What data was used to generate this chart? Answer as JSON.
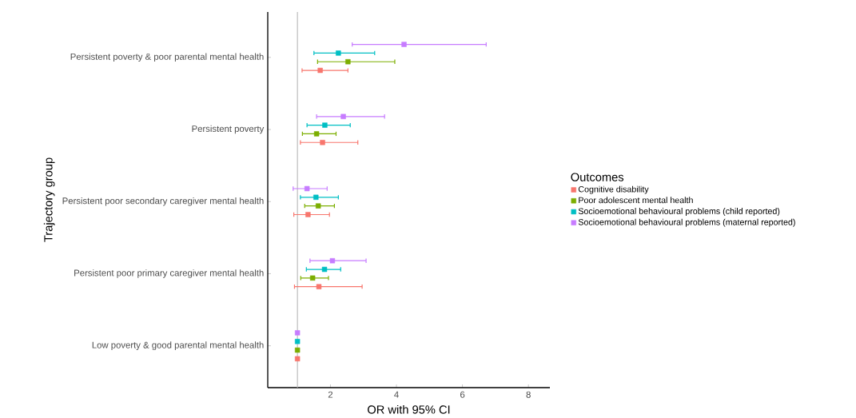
{
  "chart_data": {
    "type": "scatter",
    "orientation": "horizontal",
    "xlabel": "OR with 95% CI",
    "ylabel": "Trajectory group",
    "legend_title": "Outcomes",
    "legend": "right",
    "marker": "square",
    "grid": false,
    "categories": [
      "Persistent poverty & poor parental mental health",
      "Persistent poverty",
      "Persistent poor secondary caregiver mental health",
      "Persistent poor primary caregiver mental health",
      "Low poverty & good parental mental health"
    ],
    "xlim": [
      0.1,
      8.65
    ],
    "xticks": [
      2,
      4,
      6,
      8
    ],
    "ref_lines": [
      {
        "axis": "x",
        "value": 1,
        "color": "#bebebe"
      }
    ],
    "series": [
      {
        "name": "Cognitive disability",
        "color": "#f8766d",
        "values": [
          1.69,
          1.76,
          1.32,
          1.65,
          1
        ],
        "errors": [
          [
            1.14,
            2.53
          ],
          [
            1.09,
            2.83
          ],
          [
            0.89,
            1.97
          ],
          [
            0.91,
            2.96
          ],
          null
        ]
      },
      {
        "name": "Poor adolescent mental health",
        "color": "#7cae00",
        "values": [
          2.53,
          1.58,
          1.63,
          1.46,
          1
        ],
        "errors": [
          [
            1.61,
            3.95
          ],
          [
            1.15,
            2.17
          ],
          [
            1.22,
            2.12
          ],
          [
            1.1,
            1.94
          ],
          null
        ]
      },
      {
        "name": "Socioemotional behavioural problems (child reported)",
        "color": "#00bfc4",
        "values": [
          2.24,
          1.83,
          1.56,
          1.82,
          1
        ],
        "errors": [
          [
            1.5,
            3.34
          ],
          [
            1.29,
            2.6
          ],
          [
            1.09,
            2.24
          ],
          [
            1.27,
            2.31
          ],
          null
        ]
      },
      {
        "name": "Socioemotional behavioural problems (maternal reported)",
        "color": "#c77cff",
        "values": [
          4.23,
          2.39,
          1.29,
          2.06,
          1
        ],
        "errors": [
          [
            2.66,
            6.72
          ],
          [
            1.58,
            3.64
          ],
          [
            0.87,
            1.9
          ],
          [
            1.38,
            3.08
          ],
          null
        ]
      }
    ]
  }
}
